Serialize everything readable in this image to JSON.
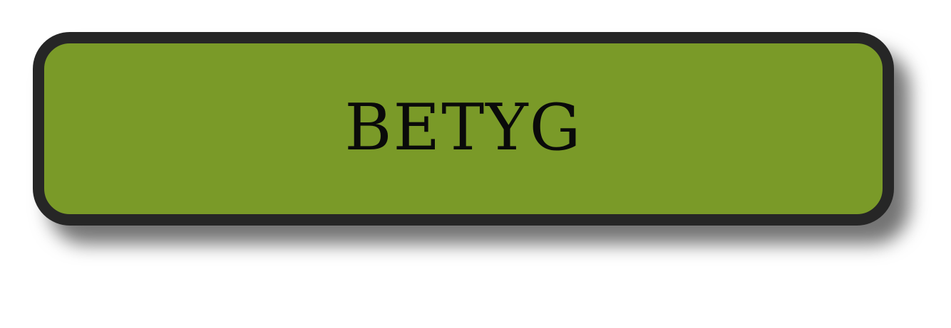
{
  "button": {
    "label": "BETYG",
    "fill_color": "#7a9a28",
    "border_color": "#262626",
    "text_color": "#0a0a0a"
  }
}
